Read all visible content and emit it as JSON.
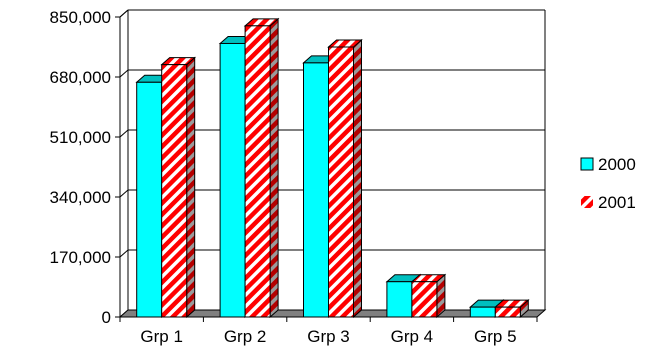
{
  "chart_data": {
    "type": "bar",
    "style": "3d-clustered-column",
    "categories": [
      "Grp 1",
      "Grp 2",
      "Grp 3",
      "Grp 4",
      "Grp 5"
    ],
    "series": [
      {
        "name": "2000",
        "values": [
          665000,
          775000,
          720000,
          100000,
          28000
        ],
        "color": "#00ffff",
        "pattern": "solid"
      },
      {
        "name": "2001",
        "values": [
          715000,
          825000,
          765000,
          100000,
          28000
        ],
        "color": "#ff0000",
        "pattern": "red-white-diagonal-stripes"
      }
    ],
    "yticks": [
      "0",
      "170,000",
      "340,000",
      "510,000",
      "680,000",
      "850,000"
    ],
    "ylim": [
      0,
      850000
    ],
    "title": "",
    "xlabel": "",
    "ylabel": "",
    "grid": "horizontal-major",
    "legend": "right"
  }
}
